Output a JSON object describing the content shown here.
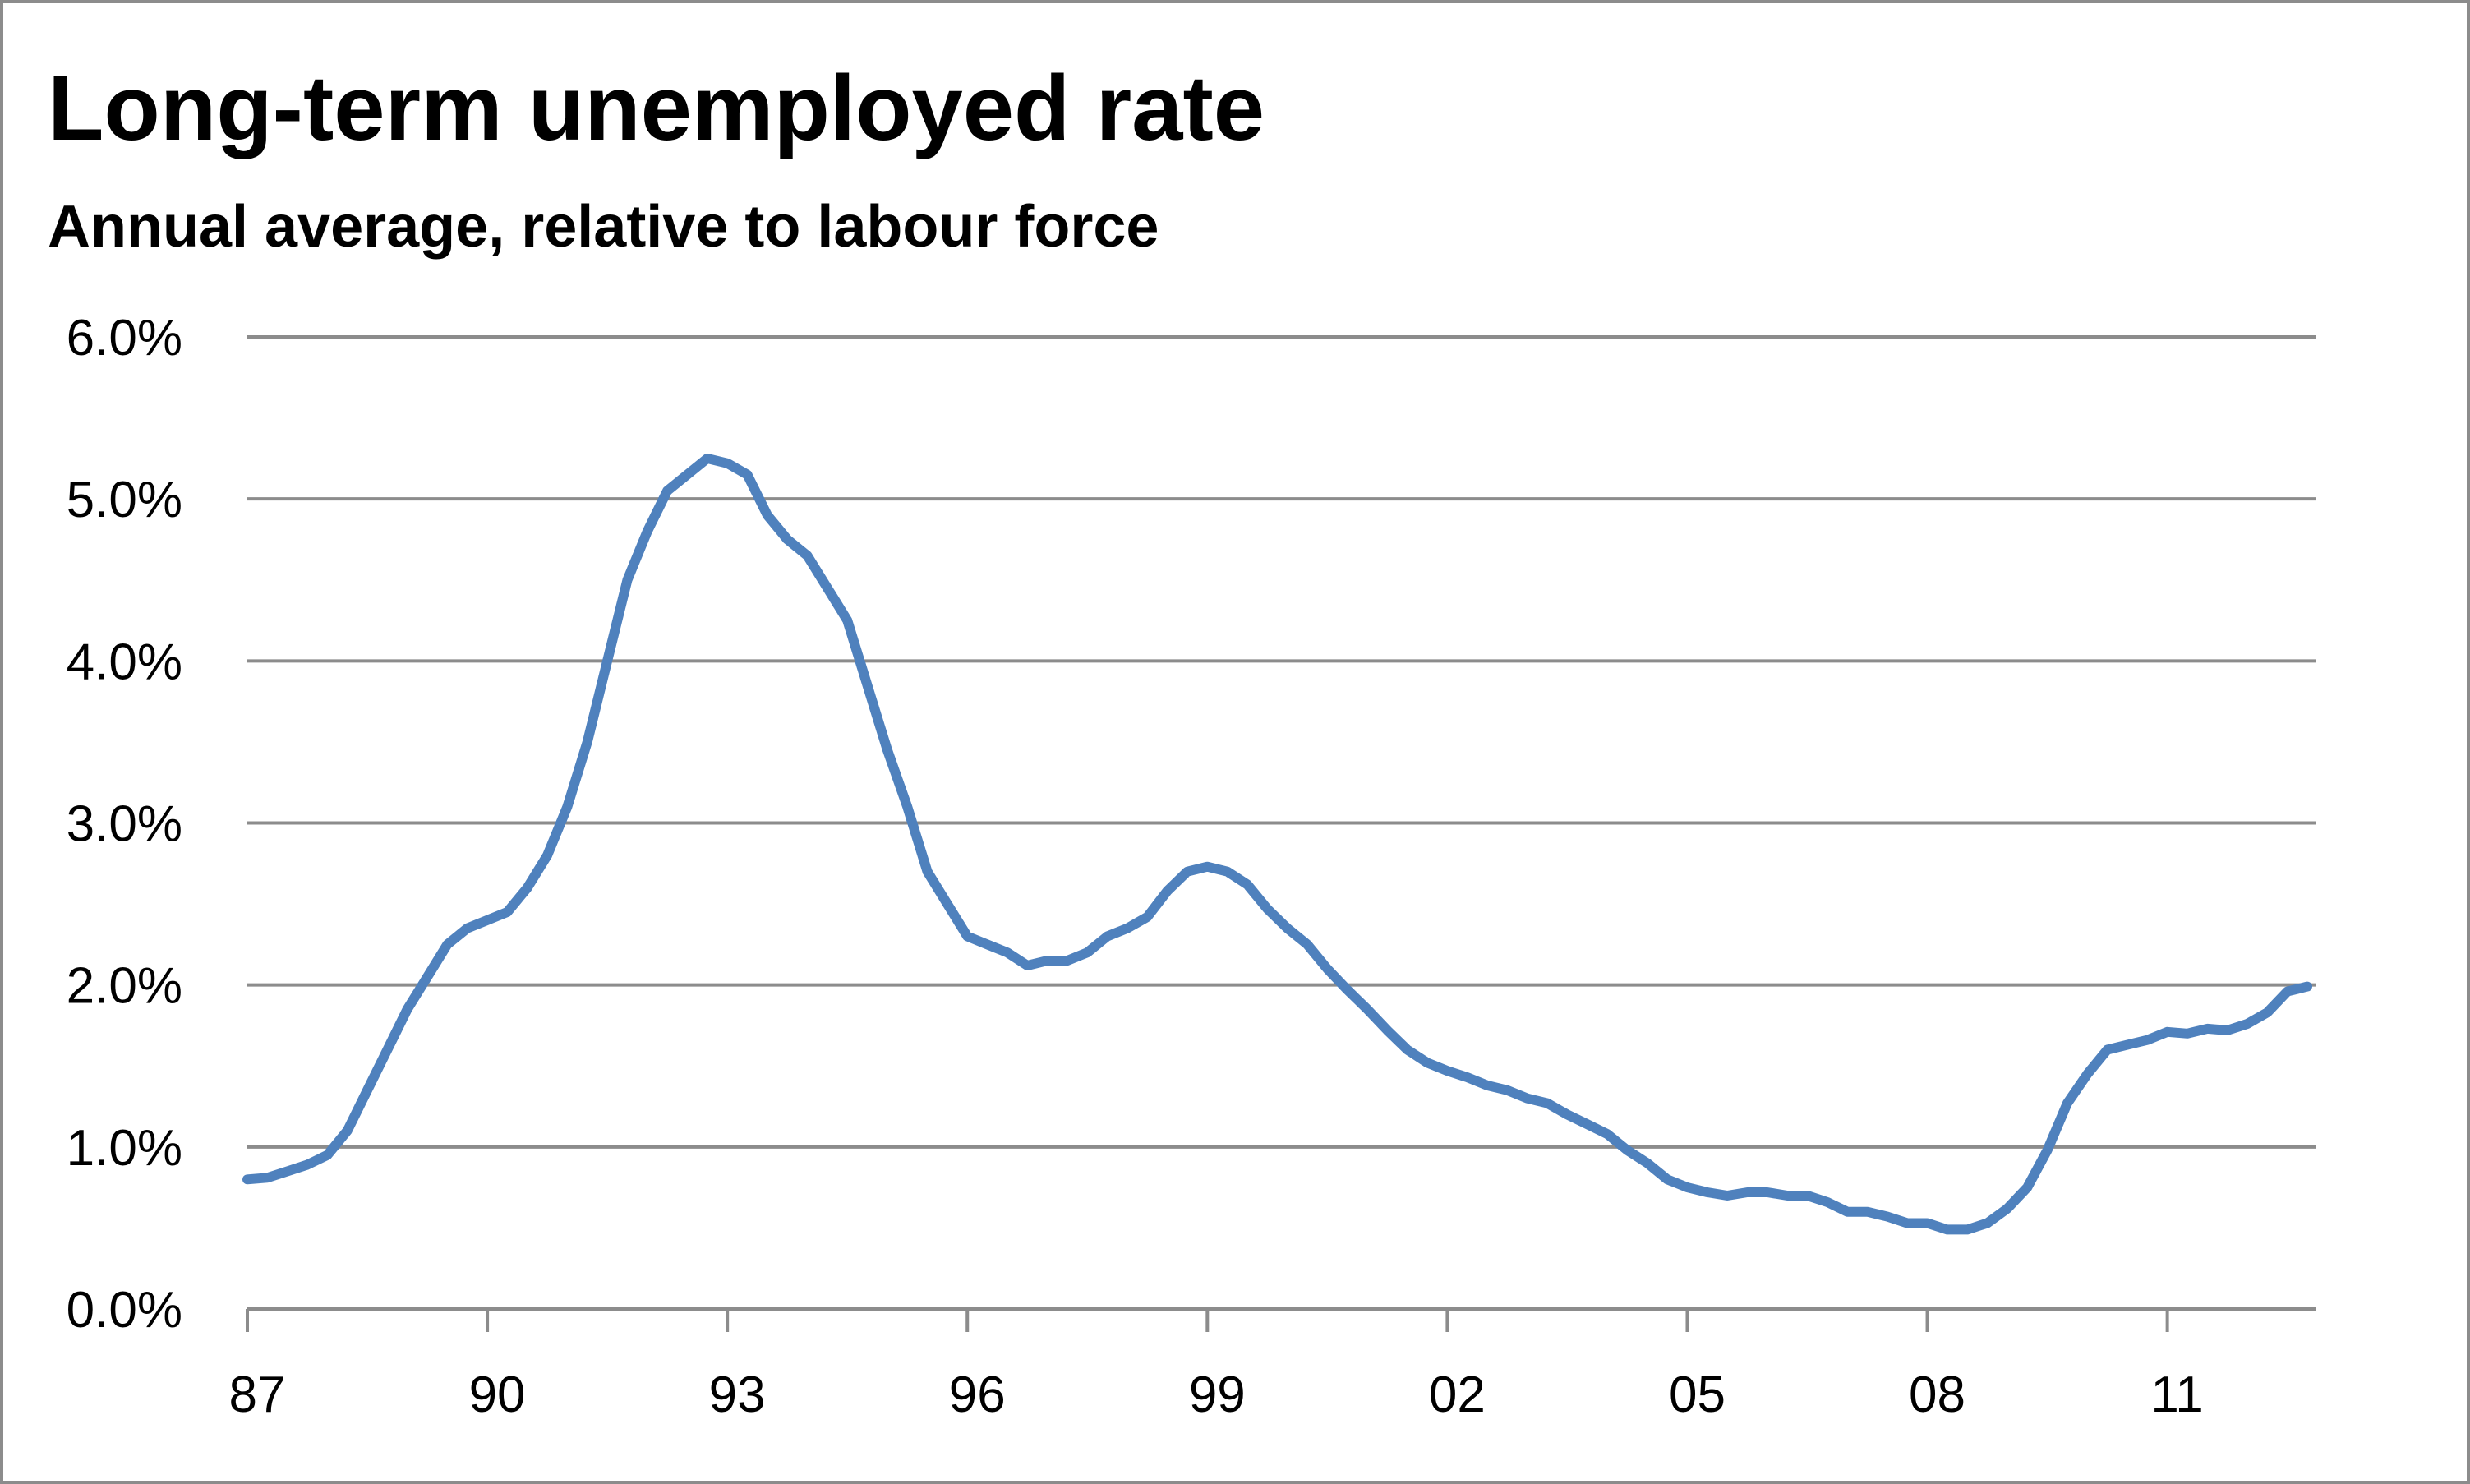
{
  "chart_data": {
    "type": "line",
    "title": "Long-term unemployed rate",
    "subtitle": "Annual average, relative to labour force",
    "color": "#4f81bd",
    "grid": true,
    "categories": [
      "87",
      null,
      null,
      null,
      null,
      null,
      null,
      null,
      null,
      null,
      null,
      null,
      "90",
      null,
      null,
      null,
      null,
      null,
      null,
      null,
      null,
      null,
      null,
      null,
      "93",
      null,
      null,
      null,
      null,
      null,
      null,
      null,
      null,
      null,
      null,
      null,
      "96",
      null,
      null,
      null,
      null,
      null,
      null,
      null,
      null,
      null,
      null,
      null,
      "99",
      null,
      null,
      null,
      null,
      null,
      null,
      null,
      null,
      null,
      null,
      null,
      "02",
      null,
      null,
      null,
      null,
      null,
      null,
      null,
      null,
      null,
      null,
      null,
      "05",
      null,
      null,
      null,
      null,
      null,
      null,
      null,
      null,
      null,
      null,
      null,
      "08",
      null,
      null,
      null,
      null,
      null,
      null,
      null,
      null,
      null,
      null,
      null,
      "11",
      null,
      null,
      null,
      null,
      null,
      null,
      null
    ],
    "values": [
      0.8,
      0.81,
      0.85,
      0.89,
      0.95,
      1.1,
      1.35,
      1.6,
      1.85,
      2.05,
      2.25,
      2.35,
      2.4,
      2.45,
      2.6,
      2.8,
      3.1,
      3.5,
      4.0,
      4.5,
      4.8,
      5.05,
      5.15,
      5.25,
      5.22,
      5.15,
      4.9,
      4.75,
      4.65,
      4.45,
      4.25,
      3.85,
      3.45,
      3.1,
      2.7,
      2.5,
      2.3,
      2.25,
      2.2,
      2.12,
      2.15,
      2.15,
      2.2,
      2.3,
      2.35,
      2.42,
      2.58,
      2.7,
      2.73,
      2.7,
      2.62,
      2.47,
      2.35,
      2.25,
      2.1,
      1.97,
      1.85,
      1.72,
      1.6,
      1.52,
      1.47,
      1.43,
      1.38,
      1.35,
      1.3,
      1.27,
      1.2,
      1.14,
      1.08,
      0.98,
      0.9,
      0.8,
      0.75,
      0.72,
      0.7,
      0.72,
      0.72,
      0.7,
      0.7,
      0.66,
      0.6,
      0.6,
      0.57,
      0.53,
      0.53,
      0.49,
      0.49,
      0.53,
      0.62,
      0.75,
      0.98,
      1.27,
      1.45,
      1.6,
      1.63,
      1.66,
      1.71,
      1.7,
      1.73,
      1.72,
      1.76,
      1.83,
      1.96,
      1.99
    ],
    "ylim": [
      0,
      6
    ],
    "yticks": [
      {
        "value": 0,
        "label": "0.0%"
      },
      {
        "value": 1,
        "label": "1.0%"
      },
      {
        "value": 2,
        "label": "2.0%"
      },
      {
        "value": 3,
        "label": "3.0%"
      },
      {
        "value": 4,
        "label": "4.0%"
      },
      {
        "value": 5,
        "label": "5.0%"
      },
      {
        "value": 6,
        "label": "6.0%"
      }
    ]
  }
}
